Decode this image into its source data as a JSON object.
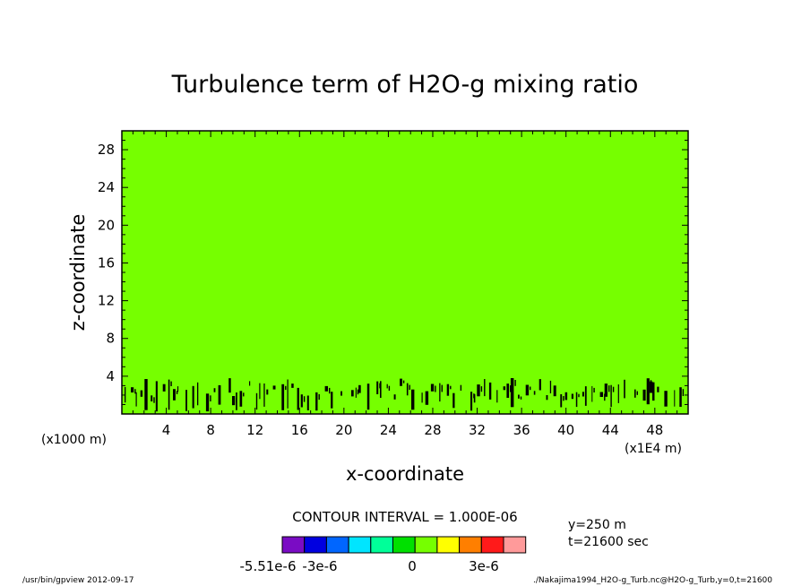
{
  "chart_data": {
    "type": "heatmap",
    "title": "Turbulence term of H2O-g mixing ratio",
    "xlabel": "x-coordinate",
    "ylabel": "z-coordinate",
    "x_unit_label": "(x1E4 m)",
    "y_unit_label": "(x1000 m)",
    "xlim": [
      0,
      51
    ],
    "ylim": [
      0,
      30
    ],
    "x_ticks": [
      "4",
      "8",
      "12",
      "16",
      "20",
      "24",
      "28",
      "32",
      "36",
      "40",
      "44",
      "48"
    ],
    "y_ticks": [
      "4",
      "8",
      "12",
      "16",
      "20",
      "24",
      "28"
    ],
    "field_value": 0,
    "field_color": "#76ff00",
    "contour_band": {
      "z_min": 0.6,
      "z_max": 3.8
    },
    "contour_interval_text": "CONTOUR INTERVAL = 1.000E-06",
    "colorbar": {
      "colors": [
        "#7a0cc4",
        "#0000e0",
        "#0066ff",
        "#00e5ff",
        "#00ff99",
        "#00e000",
        "#76ff00",
        "#ffff00",
        "#ff7f00",
        "#ff1a1a",
        "#ff9a9a"
      ],
      "labels": [
        "-5.51e-6",
        "-3e-6",
        "0",
        "3e-6"
      ]
    },
    "info_y": "y=250 m",
    "info_t": "t=21600 sec"
  },
  "footer": {
    "left": "/usr/bin/gpview   2012-09-17",
    "right": "./Nakajima1994_H2O-g_Turb.nc@H2O-g_Turb,y=0,t=21600"
  }
}
